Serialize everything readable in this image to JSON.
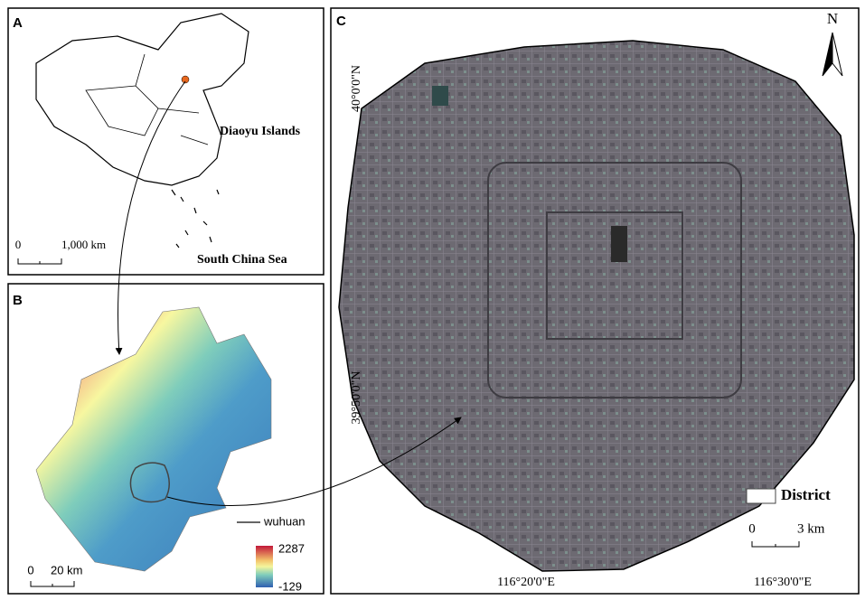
{
  "panels": {
    "a": {
      "label": "A",
      "islands_label": "Diaoyu Islands",
      "sea_label": "South China Sea",
      "scale": {
        "start": 0,
        "end": "1,000 km"
      }
    },
    "b": {
      "label": "B",
      "legend_line": "wuhuan",
      "elevation": {
        "max": 2287,
        "min": -129
      },
      "scale": {
        "start": 0,
        "end": "20 km"
      }
    },
    "c": {
      "label": "C",
      "north": "N",
      "lat_labels": [
        "40°0'0\"N",
        "39°50'0\"N"
      ],
      "lon_labels": [
        "116°20'0\"E",
        "116°30'0\"E"
      ],
      "legend_box": "District",
      "scale": {
        "start": 0,
        "end": "3 km"
      }
    }
  }
}
